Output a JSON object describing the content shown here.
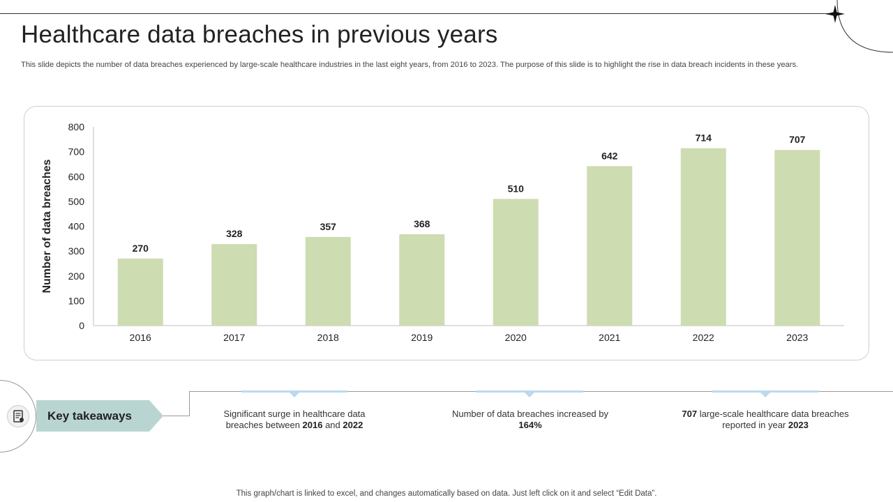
{
  "header": {
    "title": "Healthcare data breaches in previous years",
    "subtitle": "This slide depicts the number of data breaches experienced by large-scale healthcare industries in the last eight years, from 2016 to 2023. The purpose of this slide is to highlight the rise in data breach incidents in these years."
  },
  "chart_data": {
    "type": "bar",
    "categories": [
      "2016",
      "2017",
      "2018",
      "2019",
      "2020",
      "2021",
      "2022",
      "2023"
    ],
    "values": [
      270,
      328,
      357,
      368,
      510,
      642,
      714,
      707
    ],
    "xlabel": "",
    "ylabel": "Number of data breaches",
    "ylim": [
      0,
      800
    ],
    "yticks": [
      0,
      100,
      200,
      300,
      400,
      500,
      600,
      700,
      800
    ],
    "bar_color": "#cddcb1",
    "grid": false,
    "data_labels": true
  },
  "takeaways": {
    "label": "Key takeaways",
    "icon": "document-icon",
    "accent_color": "#b9d5d2",
    "items": [
      {
        "pre": "Significant surge in healthcare data breaches between ",
        "b1": "2016",
        "mid": " and ",
        "b2": "2022",
        "post": ""
      },
      {
        "pre": "Number of data breaches increased by ",
        "b1": "164%",
        "mid": "",
        "b2": "",
        "post": ""
      },
      {
        "pre": "",
        "b1": "707",
        "mid": " large-scale healthcare data breaches reported in year ",
        "b2": "2023",
        "post": ""
      }
    ]
  },
  "footer": {
    "note": "This graph/chart is linked to excel, and changes automatically based on data. Just left click on it and select “Edit Data”."
  }
}
